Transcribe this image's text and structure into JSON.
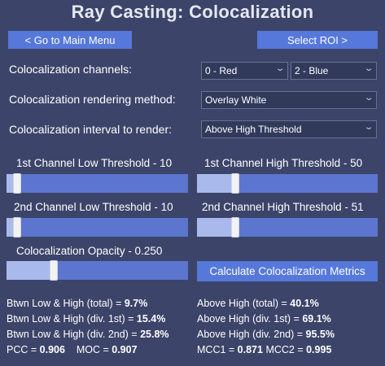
{
  "title": "Ray Casting: Colocalization",
  "buttons": {
    "back": "<  Go to Main Menu",
    "roi": "Select ROI >",
    "calc": "Calculate Colocalization Metrics"
  },
  "rows": {
    "channels_label": "Colocalization channels:",
    "channel1": "0 - Red",
    "channel2": "2 - Blue",
    "method_label": "Colocalization rendering method:",
    "method": "Overlay White",
    "interval_label": "Colocalization interval to render:",
    "interval": "Above High Threshold"
  },
  "sliders": {
    "ch1_low": {
      "label": "1st Channel Low Threshold - 10",
      "value": 10,
      "max": 255
    },
    "ch1_high": {
      "label": "1st Channel High Threshold - 50",
      "value": 50,
      "max": 255
    },
    "ch2_low": {
      "label": "2nd Channel Low Threshold - 10",
      "value": 10,
      "max": 255
    },
    "ch2_high": {
      "label": "2nd Channel High Threshold - 51",
      "value": 51,
      "max": 255
    },
    "opacity": {
      "label": "Colocalization Opacity - 0.250",
      "value": 0.25,
      "max": 1
    }
  },
  "stats": {
    "left": [
      {
        "label": "Btwn Low & High (total) = ",
        "value": "9.7%"
      },
      {
        "label": "Btwn Low & High (div. 1st) = ",
        "value": "15.4%"
      },
      {
        "label": "Btwn Low & High (div. 2nd) = ",
        "value": "25.8%"
      }
    ],
    "right": [
      {
        "label": "Above High (total) = ",
        "value": "40.1%"
      },
      {
        "label": "Above High (div. 1st) = ",
        "value": "69.1%"
      },
      {
        "label": "Above High (div. 2nd) = ",
        "value": "95.5%"
      }
    ],
    "pcc_label": "PCC = ",
    "pcc": "0.906",
    "moc_label": "MOC = ",
    "moc": "0.907",
    "mcc1_label": "MCC1 = ",
    "mcc1": "0.871",
    "mcc2_label": "MCC2 = ",
    "mcc2": "0.995"
  },
  "icons": {
    "dropdown": "chevron-down-icon"
  },
  "colors": {
    "background": "#3c4469",
    "button": "#5678db",
    "track": "#5c76cf",
    "fill": "#aab9ec"
  }
}
